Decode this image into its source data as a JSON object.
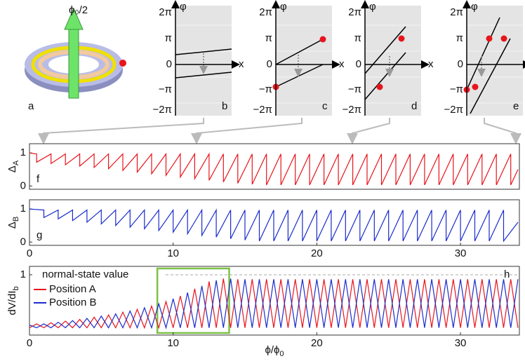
{
  "figure": {
    "panel_a": {
      "label": "a",
      "flux_label": "ϕ₀/2"
    },
    "phase_panels": {
      "y_label": "φ",
      "x_label": "x",
      "ticks": [
        "2π",
        "π",
        "0",
        "−π",
        "−2π"
      ],
      "labels": [
        "b",
        "c",
        "d",
        "e"
      ]
    }
  },
  "chart_data": [
    {
      "type": "line",
      "panel_label": "f",
      "ylabel": {
        "text": "Δ",
        "sub": "A"
      },
      "xlim": [
        0,
        34.1
      ],
      "ylim": [
        -0.1,
        1.28
      ],
      "yticks": [
        0,
        1
      ],
      "series": [
        {
          "color": "#e8141c",
          "x": [
            0,
            0.5,
            0.5,
            1.5,
            1.5,
            2.5,
            2.5,
            3.5,
            3.5,
            4.5,
            4.5,
            5.5,
            5.5,
            6.5,
            6.5,
            7.5,
            7.5,
            8.5,
            8.5,
            9.5,
            9.5,
            10.5,
            10.5,
            11.5,
            11.5,
            12.5,
            12.5,
            13.5,
            13.5,
            14.5,
            14.5,
            15.5,
            15.5,
            16.5,
            16.5,
            17.5,
            17.5,
            18.5,
            18.5,
            19.5,
            19.5,
            20.5,
            20.5,
            21.5,
            21.5,
            22.5,
            22.5,
            23.5,
            23.5,
            24.5,
            24.5,
            25.5,
            25.5,
            26.5,
            26.5,
            27.5,
            27.5,
            28.5,
            28.5,
            29.5,
            29.5,
            30.5,
            30.5,
            31.5,
            31.5,
            32.5,
            32.5,
            33.5,
            33.5,
            34
          ],
          "values": [
            1,
            0.97,
            0.72,
            0.97,
            0.68,
            0.97,
            0.64,
            0.97,
            0.6,
            0.97,
            0.56,
            0.97,
            0.52,
            0.97,
            0.47,
            0.97,
            0.42,
            0.97,
            0.37,
            0.97,
            0.32,
            0.97,
            0.27,
            0.97,
            0.22,
            0.97,
            0.17,
            0.97,
            0.12,
            0.97,
            0.08,
            0.97,
            0.05,
            0.97,
            0.03,
            0.97,
            0.03,
            0.97,
            0.03,
            0.97,
            0.03,
            0.97,
            0.03,
            0.97,
            0.03,
            0.97,
            0.03,
            0.97,
            0.03,
            0.97,
            0.03,
            0.97,
            0.03,
            0.97,
            0.03,
            0.97,
            0.03,
            0.97,
            0.03,
            0.97,
            0.03,
            0.97,
            0.03,
            0.97,
            0.03,
            0.97,
            0.03,
            0.97,
            0.03,
            0.5
          ]
        }
      ]
    },
    {
      "type": "line",
      "panel_label": "g",
      "ylabel": {
        "text": "Δ",
        "sub": "B"
      },
      "xlim": [
        0,
        34.1
      ],
      "ylim": [
        -0.1,
        1.28
      ],
      "yticks": [
        0,
        1
      ],
      "xticks": [
        0,
        10,
        20,
        30
      ],
      "series": [
        {
          "color": "#1a2ccc",
          "x": [
            0,
            1,
            1,
            2,
            2,
            3,
            3,
            4,
            4,
            5,
            5,
            6,
            6,
            7,
            7,
            8,
            8,
            9,
            9,
            10,
            10,
            11,
            11,
            12,
            12,
            13,
            13,
            14,
            14,
            15,
            15,
            16,
            16,
            17,
            17,
            18,
            18,
            19,
            19,
            20,
            20,
            21,
            21,
            22,
            22,
            23,
            23,
            24,
            24,
            25,
            25,
            26,
            26,
            27,
            27,
            28,
            28,
            29,
            29,
            30,
            30,
            31,
            31,
            32,
            32,
            33,
            33,
            34
          ],
          "values": [
            1,
            0.97,
            0.74,
            0.97,
            0.7,
            0.97,
            0.65,
            0.97,
            0.6,
            0.97,
            0.55,
            0.97,
            0.5,
            0.97,
            0.45,
            0.97,
            0.4,
            0.97,
            0.35,
            0.97,
            0.3,
            0.97,
            0.25,
            0.97,
            0.2,
            0.97,
            0.15,
            0.97,
            0.1,
            0.97,
            0.06,
            0.97,
            0.03,
            0.97,
            0.03,
            0.97,
            0.03,
            0.97,
            0.03,
            0.97,
            0.03,
            0.97,
            0.03,
            0.97,
            0.03,
            0.97,
            0.03,
            0.97,
            0.03,
            0.97,
            0.03,
            0.97,
            0.03,
            0.97,
            0.03,
            0.97,
            0.03,
            0.97,
            0.03,
            0.97,
            0.03,
            0.97,
            0.03,
            0.97,
            0.03,
            0.97,
            0.03,
            0.6
          ]
        }
      ]
    },
    {
      "type": "line",
      "panel_label": "h",
      "ylabel": {
        "text": "dV/dI",
        "sub": "b"
      },
      "xlabel": {
        "text": "ϕ/ϕ",
        "sub": "0"
      },
      "xlim": [
        0,
        34.1
      ],
      "ylim": [
        -0.08,
        1.15
      ],
      "yticks": [
        1
      ],
      "xticks": [
        0,
        10,
        20,
        30
      ],
      "legend": "upper left",
      "annotation": {
        "text": "normal-state value",
        "value": 1
      },
      "highlight_x": [
        8.9,
        13.9
      ],
      "highlight_color": "#7dc244",
      "x": [
        0,
        0.5,
        1,
        1.5,
        2,
        2.5,
        3,
        3.5,
        4,
        4.5,
        5,
        5.5,
        6,
        6.5,
        7,
        7.5,
        8,
        8.5,
        9,
        9.5,
        10,
        10.5,
        11,
        11.5,
        12,
        12.5,
        13,
        13.5,
        14,
        14.5,
        15,
        15.5,
        16,
        16.5,
        17,
        17.5,
        18,
        18.5,
        19,
        19.5,
        20,
        20.5,
        21,
        21.5,
        22,
        22.5,
        23,
        23.5,
        24,
        24.5,
        25,
        25.5,
        26,
        26.5,
        27,
        27.5,
        28,
        28.5,
        29,
        29.5,
        30,
        30.5,
        31,
        31.5,
        32,
        32.5,
        33,
        33.5,
        34
      ],
      "series": [
        {
          "name": "Position A",
          "color": "#e8141c",
          "values": [
            0.05,
            0.12,
            0.05,
            0.14,
            0.05,
            0.17,
            0.05,
            0.2,
            0.05,
            0.24,
            0.05,
            0.28,
            0.05,
            0.33,
            0.05,
            0.38,
            0.05,
            0.44,
            0.05,
            0.52,
            0.05,
            0.62,
            0.05,
            0.75,
            0.05,
            0.88,
            0.05,
            0.93,
            0.05,
            0.92,
            0.05,
            0.92,
            0.05,
            0.92,
            0.05,
            0.92,
            0.05,
            0.92,
            0.05,
            0.92,
            0.05,
            0.92,
            0.05,
            0.92,
            0.05,
            0.92,
            0.05,
            0.92,
            0.05,
            0.92,
            0.05,
            0.92,
            0.05,
            0.92,
            0.05,
            0.92,
            0.05,
            0.92,
            0.05,
            0.92,
            0.05,
            0.92,
            0.05,
            0.92,
            0.05,
            0.92,
            0.05,
            0.92,
            0.05
          ]
        },
        {
          "name": "Position B",
          "color": "#1a2ccc",
          "values": [
            0.1,
            0.05,
            0.12,
            0.05,
            0.15,
            0.05,
            0.18,
            0.05,
            0.22,
            0.05,
            0.26,
            0.05,
            0.3,
            0.05,
            0.35,
            0.05,
            0.41,
            0.05,
            0.48,
            0.05,
            0.57,
            0.05,
            0.68,
            0.05,
            0.8,
            0.05,
            0.9,
            0.05,
            0.93,
            0.05,
            0.92,
            0.05,
            0.92,
            0.05,
            0.92,
            0.05,
            0.92,
            0.05,
            0.92,
            0.05,
            0.92,
            0.05,
            0.92,
            0.05,
            0.92,
            0.05,
            0.92,
            0.05,
            0.92,
            0.05,
            0.92,
            0.05,
            0.92,
            0.05,
            0.92,
            0.05,
            0.92,
            0.05,
            0.92,
            0.05,
            0.92,
            0.05,
            0.92,
            0.05,
            0.92,
            0.05,
            0.92,
            0.05,
            0.92
          ]
        }
      ]
    }
  ]
}
